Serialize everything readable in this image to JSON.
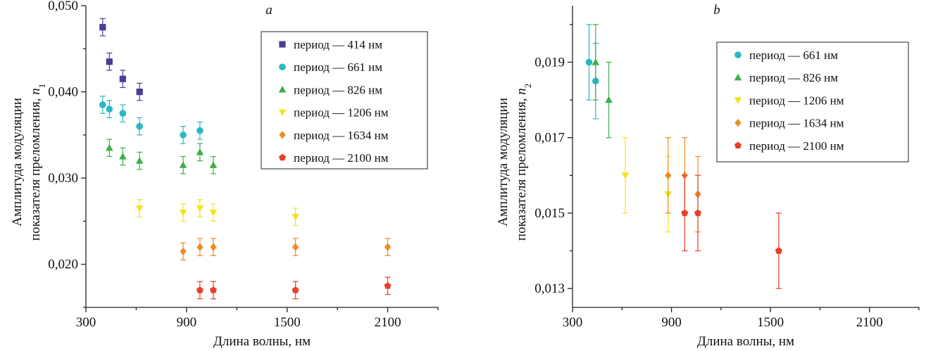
{
  "chart_data": [
    {
      "type": "scatter",
      "panel_label": "a",
      "xlabel": "Длина волны, нм",
      "ylabel_line1": "Амплитуда модуляции",
      "ylabel_line2": "показателя преломления,",
      "ylabel_symbol": "n",
      "ylabel_subscript": "1",
      "xlim": [
        300,
        2400
      ],
      "ylim": [
        0.015,
        0.05
      ],
      "xticks": [
        300,
        900,
        1500,
        2100
      ],
      "xtick_labels": [
        "300",
        "900",
        "1500",
        "2100"
      ],
      "yticks": [
        0.02,
        0.03,
        0.04,
        0.05
      ],
      "ytick_labels": [
        "0,020",
        "0,030",
        "0,040",
        "0,050"
      ],
      "legend_position": "top-right",
      "series": [
        {
          "name": "период — 414 нм",
          "marker": "square",
          "color": "#4a3d9a",
          "points": [
            {
              "x": 400,
              "y": 0.0475,
              "err": 0.001
            },
            {
              "x": 440,
              "y": 0.0435,
              "err": 0.001
            },
            {
              "x": 520,
              "y": 0.0415,
              "err": 0.001
            },
            {
              "x": 620,
              "y": 0.04,
              "err": 0.001
            }
          ]
        },
        {
          "name": "период — 661 нм",
          "marker": "circle",
          "color": "#2bb8c2",
          "points": [
            {
              "x": 400,
              "y": 0.0385,
              "err": 0.001
            },
            {
              "x": 440,
              "y": 0.038,
              "err": 0.001
            },
            {
              "x": 520,
              "y": 0.0375,
              "err": 0.001
            },
            {
              "x": 620,
              "y": 0.036,
              "err": 0.001
            },
            {
              "x": 880,
              "y": 0.035,
              "err": 0.001
            },
            {
              "x": 980,
              "y": 0.0355,
              "err": 0.001
            }
          ]
        },
        {
          "name": "период — 826 нм",
          "marker": "triangle-up",
          "color": "#3fae49",
          "points": [
            {
              "x": 440,
              "y": 0.0335,
              "err": 0.001
            },
            {
              "x": 520,
              "y": 0.0325,
              "err": 0.001
            },
            {
              "x": 620,
              "y": 0.032,
              "err": 0.001
            },
            {
              "x": 880,
              "y": 0.0315,
              "err": 0.001
            },
            {
              "x": 980,
              "y": 0.033,
              "err": 0.001
            },
            {
              "x": 1060,
              "y": 0.0315,
              "err": 0.001
            }
          ]
        },
        {
          "name": "период — 1206 нм",
          "marker": "triangle-down",
          "color": "#f2e51c",
          "points": [
            {
              "x": 620,
              "y": 0.0265,
              "err": 0.001
            },
            {
              "x": 880,
              "y": 0.026,
              "err": 0.001
            },
            {
              "x": 980,
              "y": 0.0265,
              "err": 0.001
            },
            {
              "x": 1060,
              "y": 0.026,
              "err": 0.001
            },
            {
              "x": 1550,
              "y": 0.0255,
              "err": 0.001
            }
          ]
        },
        {
          "name": "период — 1634 нм",
          "marker": "diamond",
          "color": "#f08a24",
          "points": [
            {
              "x": 880,
              "y": 0.0215,
              "err": 0.001
            },
            {
              "x": 980,
              "y": 0.022,
              "err": 0.001
            },
            {
              "x": 1060,
              "y": 0.022,
              "err": 0.001
            },
            {
              "x": 1550,
              "y": 0.022,
              "err": 0.001
            },
            {
              "x": 2100,
              "y": 0.022,
              "err": 0.001
            }
          ]
        },
        {
          "name": "период — 2100 нм",
          "marker": "pentagon",
          "color": "#e8402a",
          "points": [
            {
              "x": 980,
              "y": 0.017,
              "err": 0.001
            },
            {
              "x": 1060,
              "y": 0.017,
              "err": 0.001
            },
            {
              "x": 1550,
              "y": 0.017,
              "err": 0.001
            },
            {
              "x": 2100,
              "y": 0.0175,
              "err": 0.001
            }
          ]
        }
      ]
    },
    {
      "type": "scatter",
      "panel_label": "b",
      "xlabel": "Длина волны, нм",
      "ylabel_line1": "Амплитуда модуляции",
      "ylabel_line2": "показателя преломления,",
      "ylabel_symbol": "n",
      "ylabel_subscript": "2",
      "xlim": [
        300,
        2400
      ],
      "ylim": [
        0.0125,
        0.0205
      ],
      "xticks": [
        300,
        900,
        1500,
        2100
      ],
      "xtick_labels": [
        "300",
        "900",
        "1500",
        "2100"
      ],
      "yticks": [
        0.013,
        0.015,
        0.017,
        0.019
      ],
      "ytick_labels": [
        "0,013",
        "0,015",
        "0,017",
        "0,019"
      ],
      "legend_position": "top-right",
      "series": [
        {
          "name": "период — 661 нм",
          "marker": "circle",
          "color": "#2bb8c2",
          "points": [
            {
              "x": 400,
              "y": 0.019,
              "err": 0.001
            },
            {
              "x": 440,
              "y": 0.0185,
              "err": 0.001
            }
          ]
        },
        {
          "name": "период — 826 нм",
          "marker": "triangle-up",
          "color": "#3fae49",
          "points": [
            {
              "x": 440,
              "y": 0.019,
              "err": 0.001
            },
            {
              "x": 520,
              "y": 0.018,
              "err": 0.001
            }
          ]
        },
        {
          "name": "период — 1206 нм",
          "marker": "triangle-down",
          "color": "#f2e51c",
          "points": [
            {
              "x": 620,
              "y": 0.016,
              "err": 0.001
            },
            {
              "x": 880,
              "y": 0.0155,
              "err": 0.001
            }
          ]
        },
        {
          "name": "период — 1634 нм",
          "marker": "diamond",
          "color": "#f08a24",
          "points": [
            {
              "x": 880,
              "y": 0.016,
              "err": 0.001
            },
            {
              "x": 980,
              "y": 0.016,
              "err": 0.001
            },
            {
              "x": 1060,
              "y": 0.0155,
              "err": 0.001
            }
          ]
        },
        {
          "name": "период — 2100 нм",
          "marker": "pentagon",
          "color": "#e8402a",
          "points": [
            {
              "x": 980,
              "y": 0.015,
              "err": 0.001
            },
            {
              "x": 1060,
              "y": 0.015,
              "err": 0.001
            },
            {
              "x": 1550,
              "y": 0.014,
              "err": 0.001
            }
          ]
        }
      ]
    }
  ]
}
